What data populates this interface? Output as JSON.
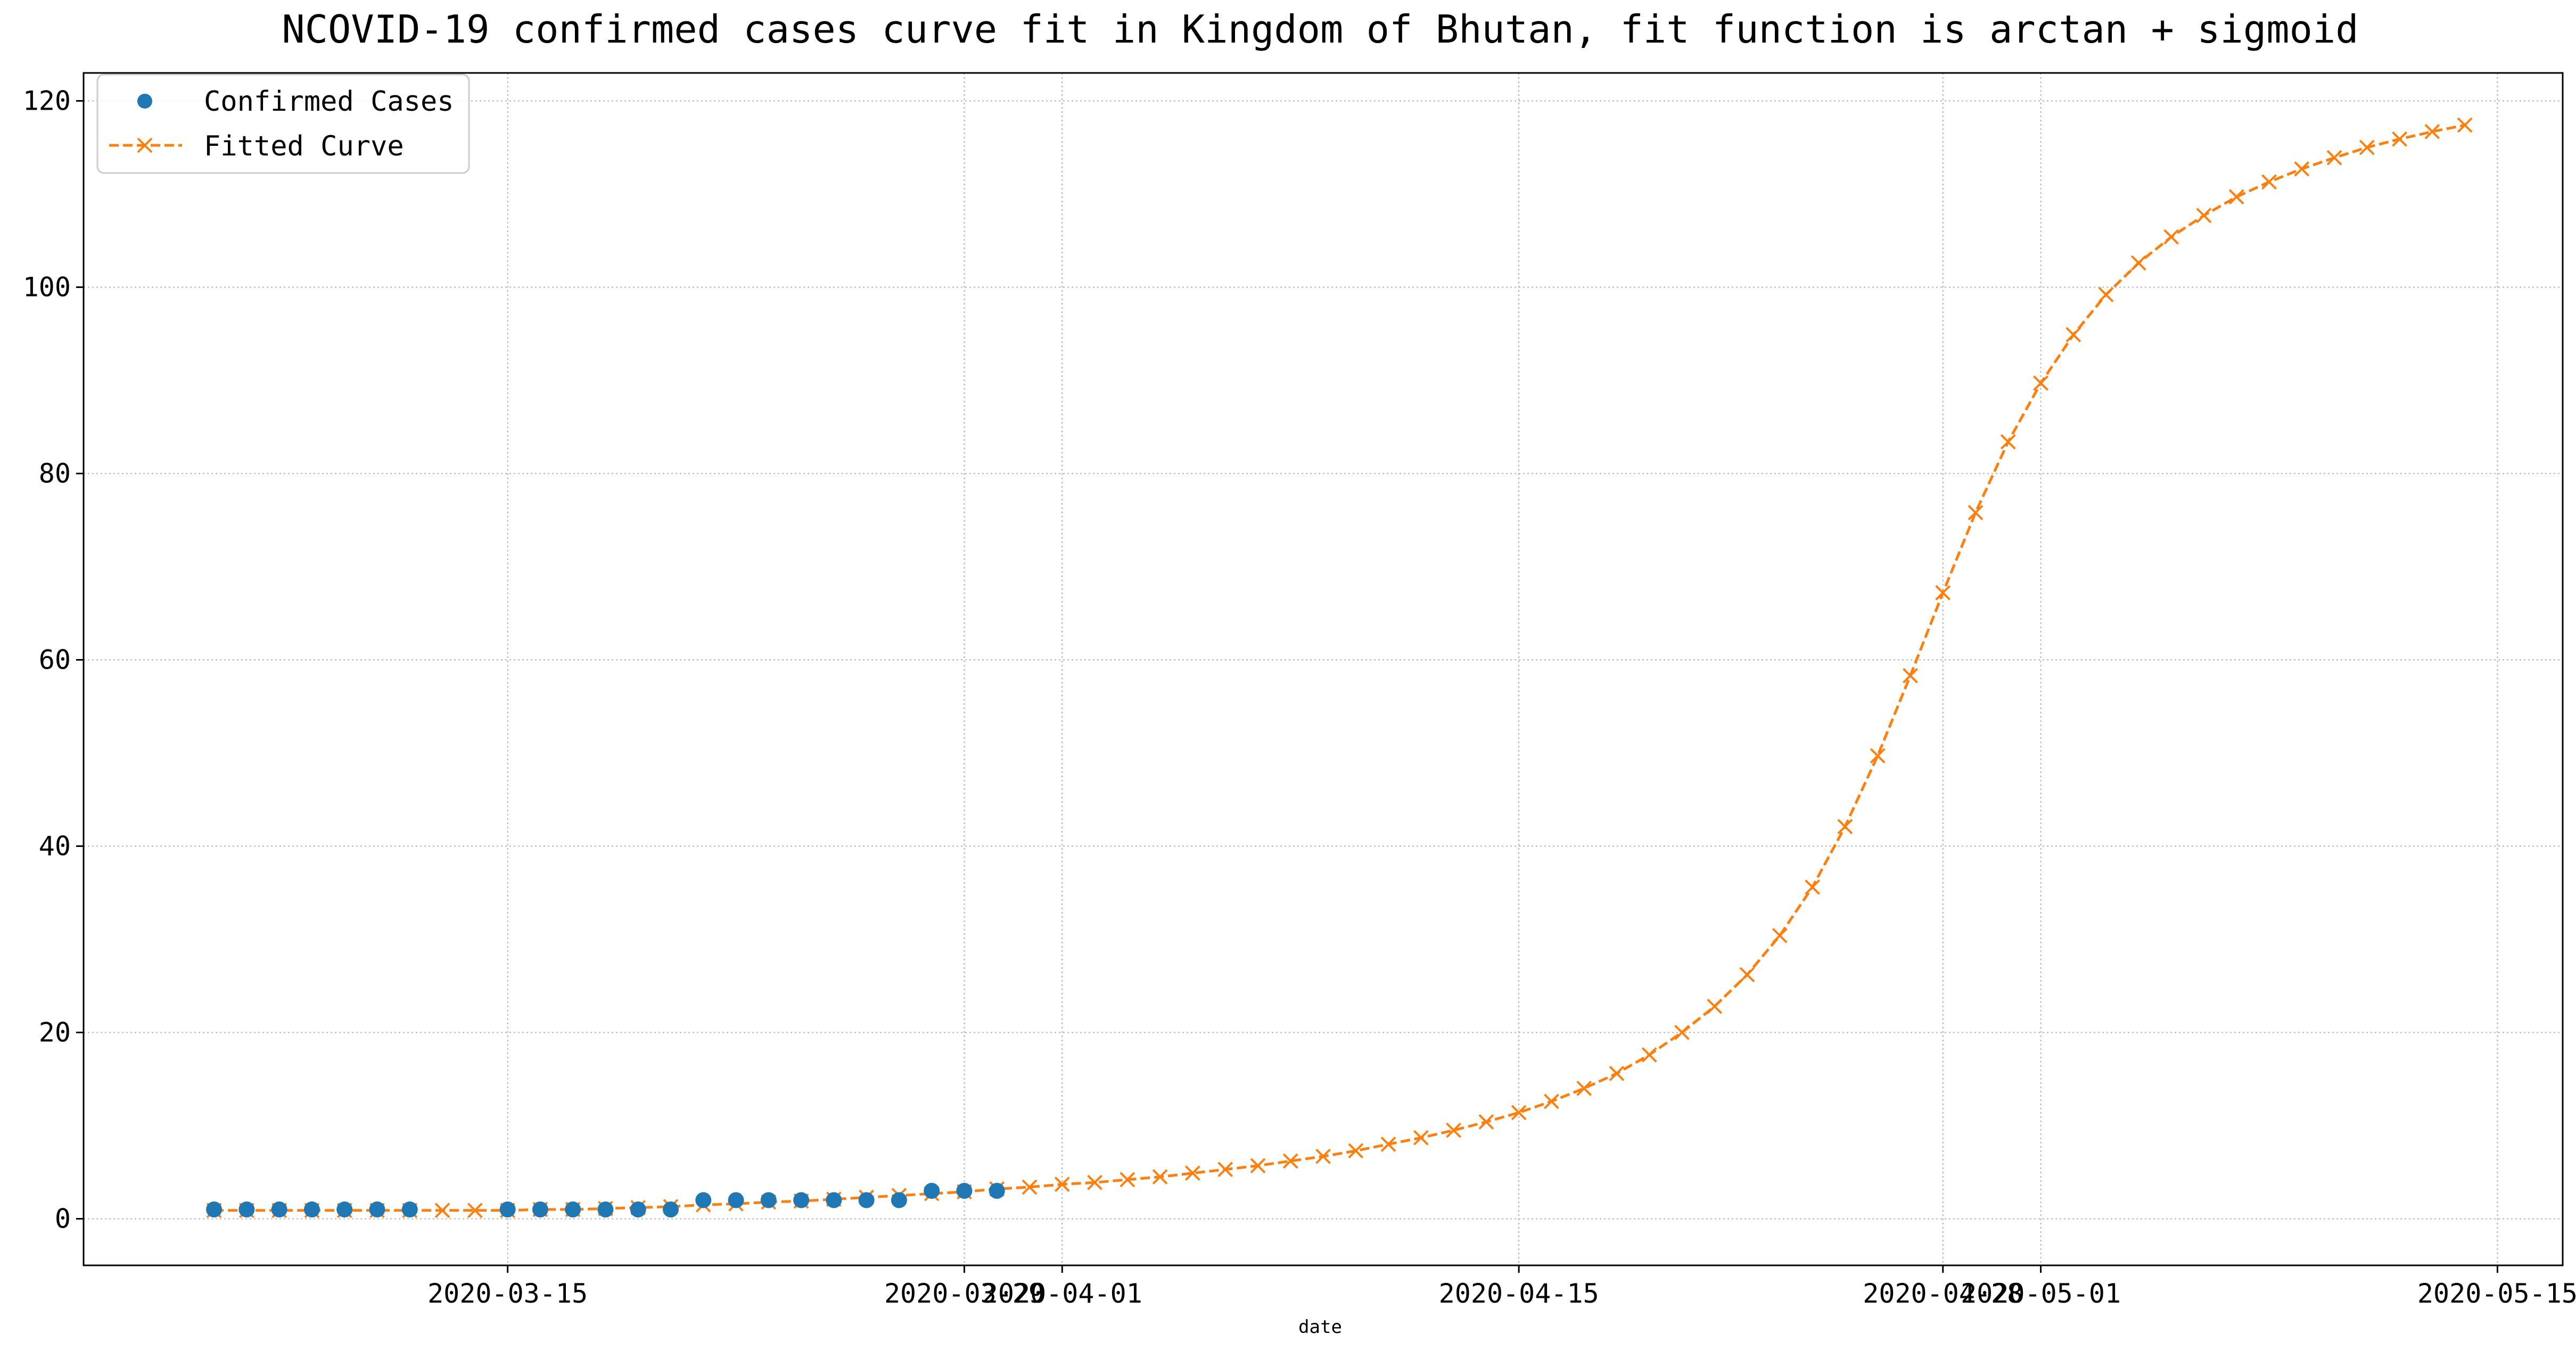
{
  "chart_data": {
    "type": "line",
    "title": "NCOVID-19 confirmed cases curve fit in Kingdom of Bhutan, fit function is arctan + sigmoid",
    "xlabel": "date",
    "ylabel": "",
    "x_axis": "date",
    "xlim": [
      "2020-03-02",
      "2020-05-17"
    ],
    "ylim": [
      -5,
      123
    ],
    "grid": true,
    "legend_position": "top-left",
    "x_ticks": [
      "2020-03-15",
      "2020-03-29",
      "2020-04-01",
      "2020-04-15",
      "2020-04-28",
      "2020-05-01",
      "2020-05-15"
    ],
    "x_tick_labels": [
      "2020-03-15",
      "2020-03-29",
      "2020-04-01",
      "2020-04-15",
      "2020-04-28",
      "2020-05-01",
      "2020-05-15"
    ],
    "y_ticks": [
      0,
      20,
      40,
      60,
      80,
      100,
      120
    ],
    "y_tick_labels": [
      "0",
      "20",
      "40",
      "60",
      "80",
      "100",
      "120"
    ],
    "colors": {
      "confirmed": "#1f77b4",
      "fitted": "#ff7f0e",
      "grid": "#b0b0b0"
    },
    "series": [
      {
        "name": "Confirmed Cases",
        "style": "markers",
        "x": [
          "2020-03-06",
          "2020-03-07",
          "2020-03-08",
          "2020-03-09",
          "2020-03-10",
          "2020-03-11",
          "2020-03-12",
          "2020-03-15",
          "2020-03-16",
          "2020-03-17",
          "2020-03-18",
          "2020-03-19",
          "2020-03-20",
          "2020-03-21",
          "2020-03-22",
          "2020-03-23",
          "2020-03-24",
          "2020-03-25",
          "2020-03-26",
          "2020-03-27",
          "2020-03-28",
          "2020-03-29",
          "2020-03-30"
        ],
        "y": [
          1,
          1,
          1,
          1,
          1,
          1,
          1,
          1,
          1,
          1,
          1,
          1,
          1,
          2,
          2,
          2,
          2,
          2,
          2,
          2,
          3,
          3,
          3
        ]
      },
      {
        "name": "Fitted Curve",
        "style": "dashed-x",
        "x": [
          "2020-03-06",
          "2020-03-07",
          "2020-03-08",
          "2020-03-09",
          "2020-03-10",
          "2020-03-11",
          "2020-03-12",
          "2020-03-13",
          "2020-03-14",
          "2020-03-15",
          "2020-03-16",
          "2020-03-17",
          "2020-03-18",
          "2020-03-19",
          "2020-03-20",
          "2020-03-21",
          "2020-03-22",
          "2020-03-23",
          "2020-03-24",
          "2020-03-25",
          "2020-03-26",
          "2020-03-27",
          "2020-03-28",
          "2020-03-29",
          "2020-03-30",
          "2020-03-31",
          "2020-04-01",
          "2020-04-02",
          "2020-04-03",
          "2020-04-04",
          "2020-04-05",
          "2020-04-06",
          "2020-04-07",
          "2020-04-08",
          "2020-04-09",
          "2020-04-10",
          "2020-04-11",
          "2020-04-12",
          "2020-04-13",
          "2020-04-14",
          "2020-04-15",
          "2020-04-16",
          "2020-04-17",
          "2020-04-18",
          "2020-04-19",
          "2020-04-20",
          "2020-04-21",
          "2020-04-22",
          "2020-04-23",
          "2020-04-24",
          "2020-04-25",
          "2020-04-26",
          "2020-04-27",
          "2020-04-28",
          "2020-04-29",
          "2020-04-30",
          "2020-05-01",
          "2020-05-02",
          "2020-05-03",
          "2020-05-04",
          "2020-05-05",
          "2020-05-06",
          "2020-05-07",
          "2020-05-08",
          "2020-05-09",
          "2020-05-10",
          "2020-05-11",
          "2020-05-12",
          "2020-05-13",
          "2020-05-14"
        ],
        "y": [
          0.9,
          0.9,
          0.9,
          0.9,
          0.9,
          0.9,
          0.9,
          0.9,
          0.9,
          0.9,
          1.0,
          1.0,
          1.1,
          1.2,
          1.3,
          1.5,
          1.6,
          1.8,
          1.9,
          2.1,
          2.3,
          2.5,
          2.7,
          2.9,
          3.2,
          3.4,
          3.7,
          3.9,
          4.2,
          4.5,
          4.9,
          5.3,
          5.7,
          6.2,
          6.7,
          7.3,
          8.0,
          8.7,
          9.5,
          10.4,
          11.4,
          12.6,
          14.0,
          15.6,
          17.6,
          20.0,
          22.8,
          26.2,
          30.4,
          35.6,
          42.1,
          49.7,
          58.3,
          67.2,
          75.8,
          83.4,
          89.7,
          94.9,
          99.2,
          102.6,
          105.4,
          107.7,
          109.7,
          111.3,
          112.7,
          113.9,
          115.0,
          115.9,
          116.7,
          117.4
        ]
      }
    ]
  }
}
